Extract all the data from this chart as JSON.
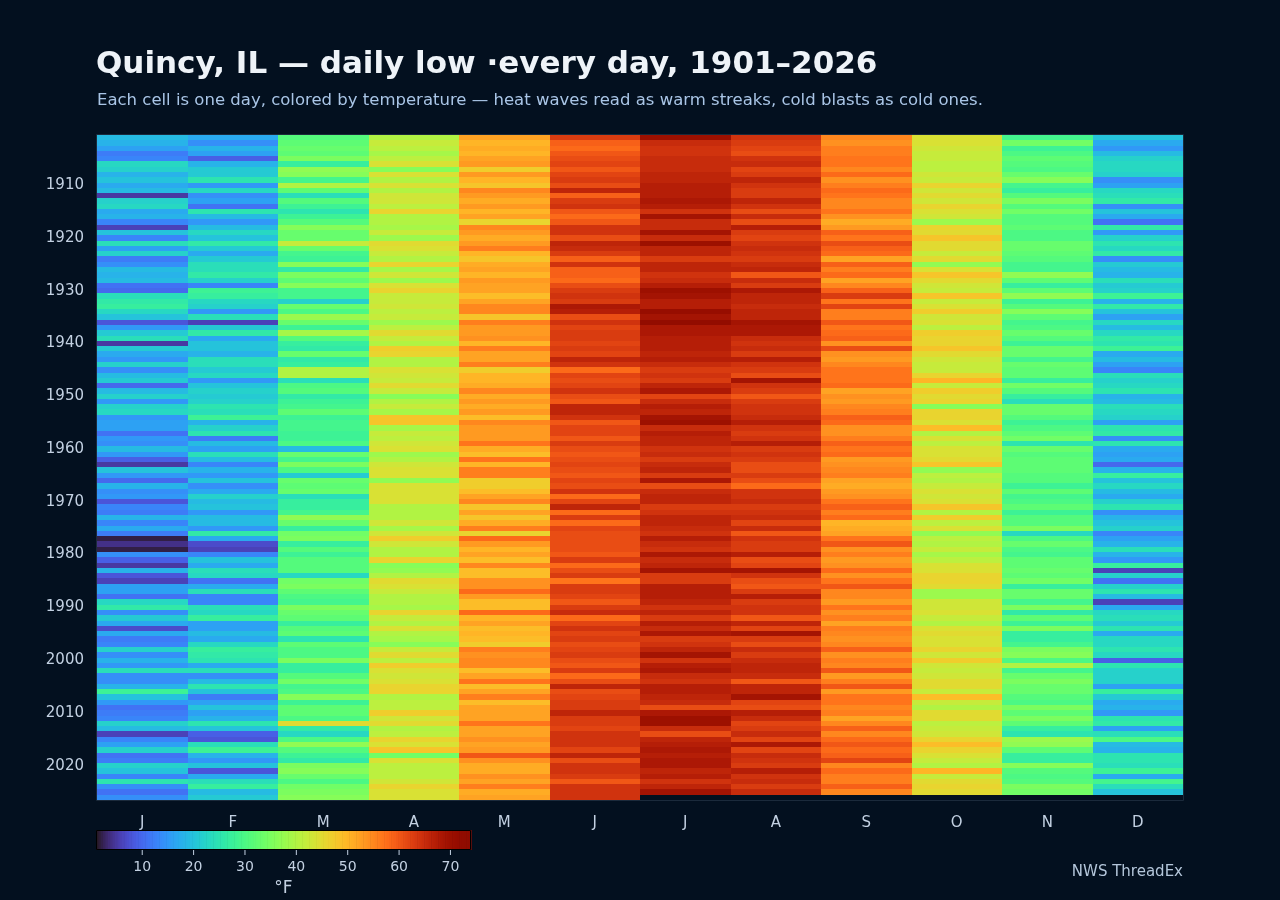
{
  "chart_data": {
    "type": "heatmap",
    "title": "Quincy, IL — daily low ·every day, 1901–2026",
    "subtitle": "Each cell is one day, colored by temperature — heat waves read as warm streaks, cold blasts as cold ones.",
    "clabel": "°F",
    "annotations": [
      "NWS ThreadEx"
    ],
    "categories": [
      "J",
      "F",
      "M",
      "A",
      "M",
      "J",
      "J",
      "A",
      "S",
      "O",
      "N",
      "D"
    ],
    "y_categories": [
      null,
      null,
      null,
      null,
      null,
      null,
      null,
      null,
      null,
      "1910",
      null,
      null,
      null,
      null,
      null,
      null,
      null,
      null,
      null,
      "1920",
      null,
      null,
      null,
      null,
      null,
      null,
      null,
      null,
      null,
      "1930",
      null,
      null,
      null,
      null,
      null,
      null,
      null,
      null,
      null,
      "1940",
      null,
      null,
      null,
      null,
      null,
      null,
      null,
      null,
      null,
      "1950",
      null,
      null,
      null,
      null,
      null,
      null,
      null,
      null,
      null,
      "1960",
      null,
      null,
      null,
      null,
      null,
      null,
      null,
      null,
      null,
      "1970",
      null,
      null,
      null,
      null,
      null,
      null,
      null,
      null,
      null,
      "1980",
      null,
      null,
      null,
      null,
      null,
      null,
      null,
      null,
      null,
      "1990",
      null,
      null,
      null,
      null,
      null,
      null,
      null,
      null,
      null,
      "2000",
      null,
      null,
      null,
      null,
      null,
      null,
      null,
      null,
      null,
      "2010",
      null,
      null,
      null,
      null,
      null,
      null,
      null,
      null,
      null,
      "2020",
      null,
      null,
      null,
      null,
      null,
      null
    ],
    "clim": [
      1,
      74
    ],
    "cticks": [
      10,
      20,
      30,
      40,
      50,
      60,
      70
    ],
    "cells": [
      [
        19,
        17,
        31,
        40,
        52,
        63,
        70,
        64,
        55,
        44,
        29,
        20
      ],
      [
        18,
        14,
        32,
        42,
        50,
        59,
        65,
        63,
        54,
        44,
        34,
        17
      ],
      [
        16,
        18,
        33,
        41,
        51,
        58,
        64,
        62,
        56,
        43,
        28,
        15
      ],
      [
        12,
        16,
        32,
        39,
        50,
        60,
        64,
        61,
        56,
        42,
        30,
        19
      ],
      [
        13,
        9,
        35,
        41,
        52,
        61,
        65,
        64,
        57,
        42,
        32,
        22
      ],
      [
        23,
        18,
        27,
        44,
        53,
        62,
        65,
        65,
        57,
        41,
        31,
        23
      ],
      [
        22,
        21,
        37,
        36,
        47,
        60,
        65,
        62,
        55,
        41,
        30,
        23
      ],
      [
        18,
        21,
        36,
        44,
        53,
        62,
        66,
        63,
        58,
        43,
        33,
        22
      ],
      [
        20,
        25,
        29,
        40,
        50,
        63,
        66,
        66,
        54,
        42,
        36,
        14
      ],
      [
        17,
        15,
        40,
        44,
        48,
        61,
        67,
        64,
        56,
        46,
        29,
        16
      ],
      [
        19,
        23,
        32,
        40,
        55,
        66,
        67,
        63,
        58,
        43,
        27,
        23
      ],
      [
        5,
        14,
        24,
        43,
        53,
        59,
        67,
        63,
        57,
        45,
        31,
        24
      ],
      [
        22,
        16,
        31,
        43,
        51,
        63,
        68,
        66,
        55,
        43,
        35,
        26
      ],
      [
        23,
        11,
        28,
        41,
        53,
        64,
        67,
        64,
        55,
        46,
        31,
        14
      ],
      [
        17,
        25,
        25,
        46,
        50,
        60,
        64,
        61,
        57,
        44,
        34,
        20
      ],
      [
        18,
        19,
        28,
        40,
        52,
        58,
        69,
        65,
        54,
        43,
        31,
        17
      ],
      [
        13,
        15,
        31,
        40,
        46,
        60,
        65,
        61,
        51,
        38,
        31,
        11
      ],
      [
        6,
        19,
        36,
        39,
        55,
        64,
        65,
        67,
        53,
        46,
        32,
        26
      ],
      [
        20,
        23,
        33,
        42,
        53,
        64,
        69,
        63,
        59,
        45,
        30,
        15
      ],
      [
        13,
        20,
        33,
        38,
        51,
        61,
        65,
        62,
        57,
        48,
        30,
        22
      ],
      [
        24,
        26,
        42,
        45,
        53,
        66,
        70,
        64,
        61,
        45,
        33,
        25
      ],
      [
        16,
        21,
        33,
        44,
        56,
        65,
        66,
        65,
        59,
        45,
        33,
        23
      ],
      [
        22,
        17,
        29,
        42,
        50,
        63,
        66,
        64,
        58,
        42,
        32,
        26
      ],
      [
        12,
        21,
        28,
        40,
        48,
        59,
        63,
        63,
        52,
        45,
        31,
        14
      ],
      [
        14,
        24,
        36,
        46,
        51,
        64,
        66,
        65,
        59,
        37,
        29,
        21
      ],
      [
        19,
        24,
        26,
        39,
        52,
        59,
        66,
        66,
        56,
        44,
        29,
        19
      ],
      [
        18,
        26,
        35,
        43,
        50,
        59,
        64,
        60,
        58,
        48,
        37,
        18
      ],
      [
        19,
        22,
        32,
        38,
        53,
        58,
        65,
        65,
        52,
        45,
        32,
        24
      ],
      [
        11,
        13,
        36,
        44,
        52,
        61,
        67,
        63,
        55,
        43,
        27,
        21
      ],
      [
        10,
        28,
        29,
        46,
        52,
        63,
        70,
        68,
        59,
        42,
        32,
        22
      ],
      [
        24,
        27,
        29,
        42,
        49,
        64,
        69,
        66,
        63,
        48,
        37,
        28
      ],
      [
        26,
        23,
        22,
        42,
        52,
        63,
        67,
        66,
        57,
        42,
        28,
        18
      ],
      [
        27,
        22,
        33,
        43,
        55,
        68,
        67,
        65,
        62,
        44,
        31,
        26
      ],
      [
        23,
        15,
        30,
        41,
        55,
        67,
        71,
        66,
        56,
        47,
        36,
        20
      ],
      [
        20,
        24,
        38,
        42,
        48,
        61,
        69,
        66,
        56,
        43,
        32,
        16
      ],
      [
        8,
        6,
        33,
        38,
        56,
        64,
        72,
        69,
        60,
        44,
        29,
        23
      ],
      [
        15,
        21,
        28,
        41,
        53,
        62,
        68,
        68,
        57,
        41,
        30,
        19
      ],
      [
        21,
        26,
        39,
        45,
        53,
        63,
        68,
        68,
        58,
        47,
        33,
        23
      ],
      [
        24,
        17,
        31,
        42,
        54,
        63,
        67,
        65,
        59,
        46,
        31,
        26
      ],
      [
        5,
        20,
        27,
        40,
        50,
        62,
        67,
        64,
        54,
        46,
        28,
        25
      ],
      [
        21,
        20,
        26,
        47,
        56,
        63,
        67,
        65,
        61,
        48,
        33,
        28
      ],
      [
        17,
        18,
        33,
        46,
        52,
        62,
        66,
        63,
        54,
        45,
        33,
        17
      ],
      [
        15,
        24,
        26,
        40,
        52,
        66,
        67,
        67,
        53,
        43,
        29,
        19
      ],
      [
        22,
        24,
        27,
        40,
        56,
        64,
        65,
        64,
        55,
        42,
        33,
        16
      ],
      [
        14,
        21,
        40,
        44,
        47,
        58,
        63,
        63,
        57,
        42,
        32,
        13
      ],
      [
        19,
        23,
        40,
        43,
        50,
        62,
        64,
        61,
        57,
        46,
        32,
        24
      ],
      [
        21,
        15,
        24,
        42,
        50,
        61,
        63,
        69,
        57,
        50,
        27,
        22
      ],
      [
        10,
        20,
        30,
        45,
        51,
        62,
        66,
        64,
        58,
        42,
        34,
        23
      ],
      [
        19,
        22,
        31,
        42,
        55,
        64,
        68,
        63,
        52,
        47,
        31,
        25
      ],
      [
        22,
        21,
        26,
        36,
        51,
        61,
        62,
        60,
        54,
        45,
        27,
        18
      ],
      [
        15,
        22,
        28,
        40,
        53,
        60,
        65,
        63,
        53,
        46,
        24,
        19
      ],
      [
        22,
        25,
        29,
        42,
        51,
        66,
        67,
        64,
        55,
        36,
        33,
        24
      ],
      [
        23,
        24,
        32,
        39,
        53,
        66,
        66,
        64,
        56,
        46,
        33,
        23
      ],
      [
        15,
        28,
        28,
        48,
        49,
        64,
        69,
        65,
        59,
        46,
        31,
        22
      ],
      [
        16,
        18,
        29,
        48,
        55,
        60,
        70,
        67,
        58,
        44,
        28,
        16
      ],
      [
        16,
        22,
        29,
        39,
        53,
        62,
        65,
        64,
        54,
        49,
        30,
        25
      ],
      [
        11,
        25,
        28,
        42,
        53,
        62,
        67,
        63,
        54,
        40,
        32,
        26
      ],
      [
        15,
        12,
        28,
        41,
        53,
        60,
        66,
        64,
        56,
        44,
        34,
        14
      ],
      [
        14,
        19,
        30,
        43,
        57,
        63,
        66,
        67,
        59,
        41,
        25,
        25
      ],
      [
        19,
        16,
        19,
        44,
        51,
        61,
        64,
        63,
        57,
        44,
        33,
        17
      ],
      [
        15,
        24,
        33,
        38,
        49,
        60,
        65,
        64,
        58,
        44,
        31,
        16
      ],
      [
        9,
        19,
        29,
        40,
        57,
        61,
        63,
        63,
        53,
        45,
        32,
        17
      ],
      [
        5,
        13,
        35,
        43,
        50,
        62,
        65,
        61,
        54,
        48,
        32,
        10
      ],
      [
        20,
        18,
        30,
        44,
        56,
        61,
        66,
        61,
        55,
        37,
        32,
        18
      ],
      [
        15,
        15,
        21,
        44,
        56,
        60,
        63,
        63,
        56,
        41,
        31,
        27
      ],
      [
        10,
        20,
        33,
        37,
        47,
        62,
        68,
        61,
        52,
        40,
        31,
        20
      ],
      [
        18,
        14,
        32,
        44,
        47,
        61,
        61,
        58,
        51,
        42,
        28,
        23
      ],
      [
        14,
        17,
        33,
        44,
        49,
        64,
        65,
        64,
        53,
        44,
        32,
        19
      ],
      [
        15,
        22,
        24,
        44,
        52,
        58,
        66,
        64,
        54,
        43,
        29,
        17
      ],
      [
        8,
        19,
        27,
        44,
        55,
        62,
        66,
        65,
        57,
        44,
        30,
        22
      ],
      [
        13,
        20,
        27,
        40,
        48,
        66,
        63,
        63,
        59,
        48,
        32,
        25
      ],
      [
        12,
        15,
        29,
        40,
        52,
        58,
        64,
        64,
        56,
        40,
        28,
        14
      ],
      [
        18,
        19,
        37,
        40,
        48,
        63,
        66,
        65,
        58,
        47,
        31,
        18
      ],
      [
        13,
        19,
        33,
        43,
        51,
        58,
        66,
        62,
        50,
        41,
        31,
        20
      ],
      [
        17,
        15,
        27,
        39,
        56,
        62,
        65,
        65,
        51,
        44,
        35,
        22
      ],
      [
        12,
        26,
        34,
        43,
        46,
        61,
        64,
        60,
        52,
        37,
        23,
        13
      ],
      [
        2,
        17,
        35,
        47,
        58,
        61,
        67,
        64,
        57,
        41,
        30,
        16
      ],
      [
        4,
        7,
        27,
        43,
        53,
        61,
        65,
        63,
        60,
        40,
        33,
        18
      ],
      [
        2,
        6,
        31,
        40,
        50,
        61,
        64,
        63,
        54,
        42,
        30,
        24
      ],
      [
        14,
        13,
        28,
        40,
        52,
        60,
        68,
        67,
        56,
        39,
        29,
        18
      ],
      [
        9,
        20,
        31,
        46,
        49,
        63,
        65,
        61,
        53,
        41,
        32,
        15
      ],
      [
        5,
        17,
        31,
        36,
        55,
        58,
        66,
        62,
        54,
        44,
        32,
        27
      ],
      [
        18,
        24,
        31,
        37,
        49,
        61,
        69,
        69,
        58,
        44,
        33,
        6
      ],
      [
        8,
        23,
        23,
        40,
        49,
        63,
        63,
        64,
        54,
        46,
        32,
        22
      ],
      [
        6,
        11,
        34,
        45,
        54,
        57,
        63,
        61,
        57,
        46,
        34,
        11
      ],
      [
        16,
        17,
        35,
        44,
        54,
        63,
        67,
        60,
        60,
        45,
        27,
        22
      ],
      [
        16,
        24,
        32,
        42,
        58,
        63,
        67,
        63,
        55,
        38,
        33,
        25
      ],
      [
        11,
        13,
        30,
        40,
        53,
        62,
        67,
        67,
        55,
        38,
        33,
        19
      ],
      [
        23,
        13,
        29,
        40,
        49,
        60,
        66,
        63,
        53,
        43,
        29,
        6
      ],
      [
        26,
        24,
        35,
        39,
        49,
        63,
        64,
        64,
        57,
        43,
        35,
        17
      ],
      [
        14,
        23,
        33,
        46,
        58,
        65,
        66,
        64,
        54,
        44,
        26,
        23
      ],
      [
        21,
        27,
        32,
        42,
        50,
        58,
        63,
        60,
        56,
        42,
        32,
        24
      ],
      [
        17,
        16,
        27,
        40,
        52,
        62,
        67,
        66,
        52,
        40,
        28,
        21
      ],
      [
        7,
        16,
        31,
        44,
        49,
        64,
        65,
        62,
        56,
        44,
        35,
        25
      ],
      [
        17,
        19,
        32,
        40,
        50,
        62,
        68,
        69,
        55,
        45,
        27,
        17
      ],
      [
        12,
        17,
        25,
        39,
        49,
        63,
        63,
        63,
        54,
        44,
        27,
        23
      ],
      [
        13,
        23,
        32,
        36,
        47,
        61,
        64,
        61,
        55,
        44,
        29,
        23
      ],
      [
        22,
        27,
        30,
        42,
        56,
        62,
        66,
        65,
        59,
        46,
        35,
        25
      ],
      [
        14,
        26,
        30,
        45,
        54,
        63,
        69,
        63,
        54,
        43,
        36,
        23
      ],
      [
        18,
        25,
        35,
        41,
        55,
        61,
        64,
        65,
        56,
        47,
        30,
        9
      ],
      [
        15,
        17,
        27,
        47,
        55,
        60,
        67,
        66,
        55,
        43,
        40,
        25
      ],
      [
        24,
        24,
        27,
        44,
        49,
        63,
        68,
        66,
        60,
        42,
        29,
        22
      ],
      [
        14,
        14,
        31,
        43,
        52,
        58,
        65,
        65,
        53,
        43,
        33,
        22
      ],
      [
        14,
        19,
        34,
        44,
        57,
        61,
        64,
        60,
        56,
        45,
        35,
        22
      ],
      [
        18,
        25,
        29,
        46,
        49,
        66,
        67,
        66,
        60,
        45,
        33,
        16
      ],
      [
        28,
        20,
        30,
        46,
        52,
        61,
        67,
        66,
        53,
        42,
        33,
        27
      ],
      [
        20,
        12,
        36,
        40,
        56,
        62,
        66,
        69,
        57,
        49,
        31,
        21
      ],
      [
        15,
        16,
        28,
        41,
        49,
        63,
        65,
        62,
        57,
        42,
        30,
        17
      ],
      [
        11,
        20,
        32,
        41,
        52,
        63,
        61,
        61,
        55,
        40,
        35,
        18
      ],
      [
        12,
        16,
        32,
        47,
        52,
        66,
        68,
        67,
        56,
        45,
        32,
        15
      ],
      [
        13,
        18,
        30,
        43,
        52,
        63,
        70,
        65,
        52,
        45,
        35,
        25
      ],
      [
        22,
        25,
        45,
        45,
        57,
        63,
        70,
        62,
        55,
        41,
        32,
        26
      ],
      [
        19,
        20,
        26,
        40,
        52,
        62,
        65,
        63,
        59,
        42,
        27,
        16
      ],
      [
        6,
        9,
        23,
        41,
        52,
        64,
        61,
        65,
        55,
        43,
        25,
        24
      ],
      [
        13,
        8,
        30,
        46,
        54,
        64,
        66,
        62,
        58,
        46,
        38,
        30
      ],
      [
        16,
        24,
        37,
        44,
        52,
        64,
        67,
        68,
        60,
        49,
        37,
        19
      ],
      [
        22,
        28,
        31,
        48,
        53,
        62,
        68,
        62,
        58,
        46,
        32,
        18
      ],
      [
        11,
        18,
        28,
        34,
        60,
        66,
        67,
        65,
        59,
        44,
        27,
        25
      ],
      [
        12,
        15,
        26,
        44,
        54,
        61,
        68,
        64,
        62,
        42,
        27,
        25
      ],
      [
        22,
        20,
        35,
        41,
        51,
        64,
        68,
        63,
        55,
        40,
        36,
        24
      ],
      [
        20,
        8,
        36,
        41,
        51,
        64,
        66,
        67,
        58,
        50,
        31,
        28
      ],
      [
        13,
        17,
        33,
        41,
        54,
        63,
        67,
        64,
        56,
        42,
        30,
        17
      ],
      [
        25,
        24,
        30,
        43,
        52,
        60,
        64,
        65,
        56,
        45,
        31,
        29
      ],
      [
        14,
        27,
        34,
        46,
        56,
        64,
        66,
        63,
        59,
        46,
        35,
        24
      ],
      [
        11,
        19,
        35,
        44,
        51,
        64,
        69,
        65,
        55,
        45,
        34,
        20
      ],
      [
        14,
        21,
        36,
        44,
        52,
        64,
        null,
        null,
        null,
        null,
        null,
        null
      ]
    ]
  }
}
